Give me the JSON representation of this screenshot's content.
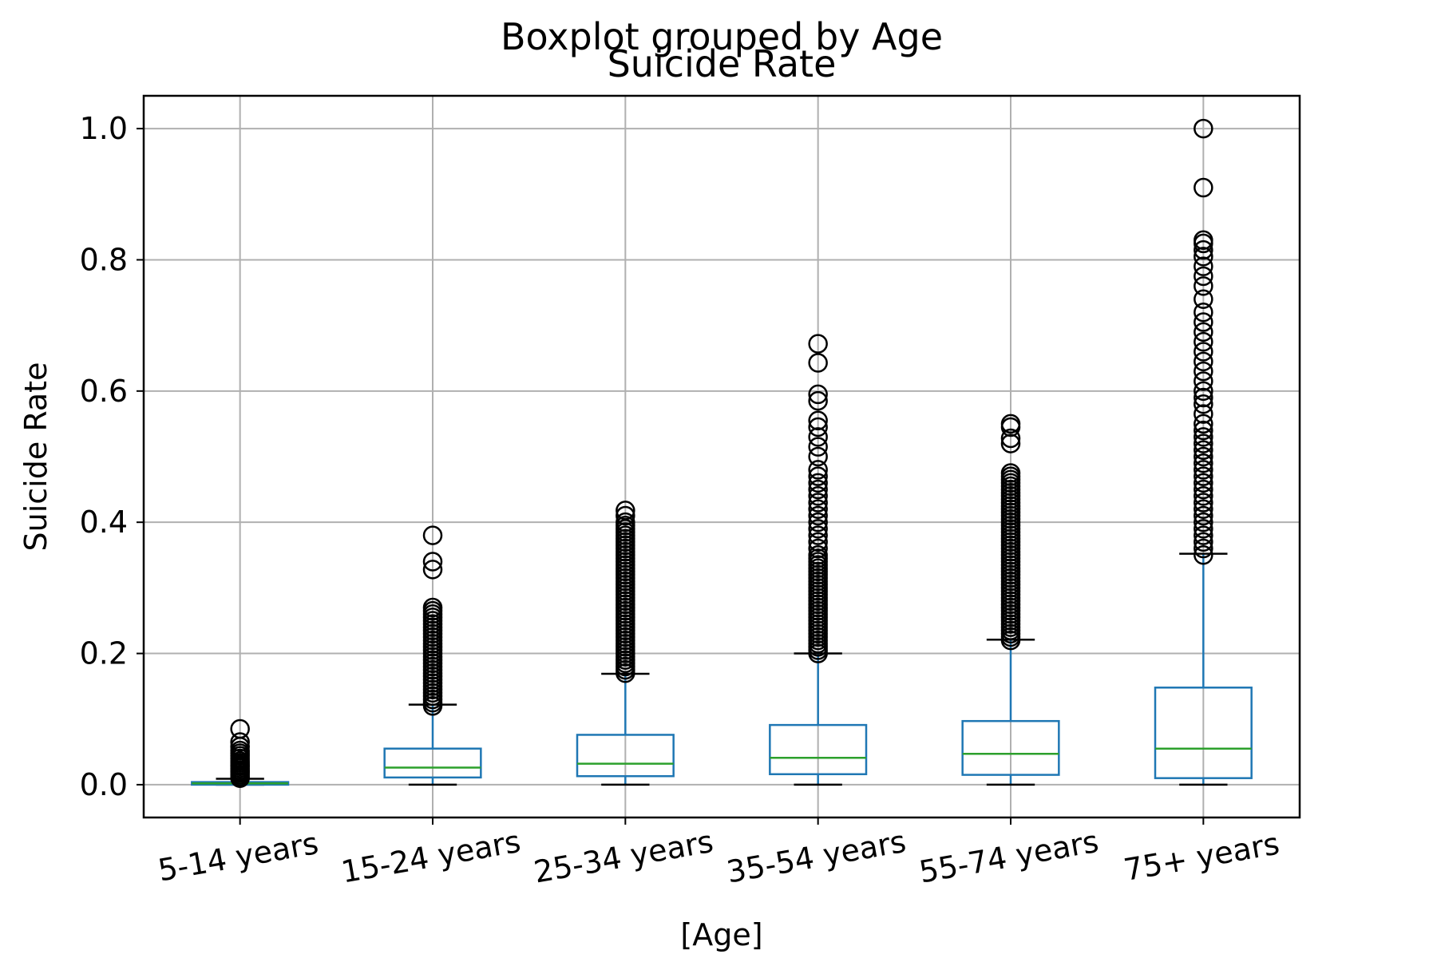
{
  "chart_data": {
    "type": "boxplot",
    "suptitle": "Boxplot grouped by Age",
    "title": "Suicide Rate",
    "xlabel": "[Age]",
    "ylabel": "Suicide Rate",
    "ylim": [
      -0.05,
      1.05
    ],
    "yticks": [
      0.0,
      0.2,
      0.4,
      0.6,
      0.8,
      1.0
    ],
    "ytick_labels": [
      "0.0",
      "0.2",
      "0.4",
      "0.6",
      "0.8",
      "1.0"
    ],
    "grid": true,
    "categories": [
      "5-14 years",
      "15-24 years",
      "25-34 years",
      "35-54 years",
      "55-74 years",
      "75+ years"
    ],
    "boxes": [
      {
        "category": "5-14 years",
        "whisker_low": 0.0,
        "q1": 0.0,
        "median": 0.002,
        "q3": 0.004,
        "whisker_high": 0.009,
        "outliers": [
          0.01,
          0.012,
          0.015,
          0.018,
          0.02,
          0.022,
          0.025,
          0.028,
          0.03,
          0.033,
          0.036,
          0.04,
          0.044,
          0.048,
          0.052,
          0.058,
          0.065,
          0.085
        ]
      },
      {
        "category": "15-24 years",
        "whisker_low": 0.0,
        "q1": 0.011,
        "median": 0.026,
        "q3": 0.055,
        "whisker_high": 0.122,
        "outliers": [
          0.12,
          0.125,
          0.13,
          0.135,
          0.14,
          0.145,
          0.15,
          0.155,
          0.16,
          0.165,
          0.17,
          0.175,
          0.18,
          0.185,
          0.19,
          0.195,
          0.2,
          0.205,
          0.21,
          0.215,
          0.22,
          0.225,
          0.23,
          0.235,
          0.24,
          0.245,
          0.25,
          0.255,
          0.26,
          0.265,
          0.27,
          0.328,
          0.34,
          0.38
        ]
      },
      {
        "category": "25-34 years",
        "whisker_low": 0.0,
        "q1": 0.013,
        "median": 0.032,
        "q3": 0.076,
        "whisker_high": 0.169,
        "outliers": [
          0.17,
          0.175,
          0.18,
          0.185,
          0.19,
          0.195,
          0.2,
          0.205,
          0.21,
          0.215,
          0.22,
          0.225,
          0.23,
          0.235,
          0.24,
          0.245,
          0.25,
          0.255,
          0.26,
          0.265,
          0.27,
          0.275,
          0.28,
          0.285,
          0.29,
          0.295,
          0.3,
          0.305,
          0.31,
          0.315,
          0.32,
          0.325,
          0.33,
          0.335,
          0.34,
          0.345,
          0.35,
          0.355,
          0.36,
          0.365,
          0.37,
          0.375,
          0.38,
          0.385,
          0.39,
          0.395,
          0.4,
          0.41,
          0.418
        ]
      },
      {
        "category": "35-54 years",
        "whisker_low": 0.0,
        "q1": 0.016,
        "median": 0.041,
        "q3": 0.091,
        "whisker_high": 0.2,
        "outliers": [
          0.2,
          0.205,
          0.21,
          0.215,
          0.22,
          0.225,
          0.23,
          0.235,
          0.24,
          0.245,
          0.25,
          0.255,
          0.26,
          0.265,
          0.27,
          0.275,
          0.28,
          0.285,
          0.29,
          0.295,
          0.3,
          0.305,
          0.31,
          0.315,
          0.32,
          0.325,
          0.33,
          0.335,
          0.34,
          0.345,
          0.35,
          0.36,
          0.37,
          0.38,
          0.39,
          0.4,
          0.41,
          0.42,
          0.43,
          0.44,
          0.45,
          0.46,
          0.47,
          0.48,
          0.5,
          0.515,
          0.53,
          0.545,
          0.555,
          0.585,
          0.595,
          0.643,
          0.672
        ]
      },
      {
        "category": "55-74 years",
        "whisker_low": 0.0,
        "q1": 0.015,
        "median": 0.047,
        "q3": 0.097,
        "whisker_high": 0.221,
        "outliers": [
          0.22,
          0.225,
          0.23,
          0.235,
          0.24,
          0.245,
          0.25,
          0.255,
          0.26,
          0.265,
          0.27,
          0.275,
          0.28,
          0.285,
          0.29,
          0.295,
          0.3,
          0.305,
          0.31,
          0.315,
          0.32,
          0.325,
          0.33,
          0.335,
          0.34,
          0.345,
          0.35,
          0.355,
          0.36,
          0.365,
          0.37,
          0.375,
          0.38,
          0.385,
          0.39,
          0.395,
          0.4,
          0.405,
          0.41,
          0.415,
          0.42,
          0.425,
          0.43,
          0.435,
          0.44,
          0.445,
          0.45,
          0.455,
          0.46,
          0.465,
          0.47,
          0.475,
          0.52,
          0.528,
          0.545,
          0.55
        ]
      },
      {
        "category": "75+ years",
        "whisker_low": 0.0,
        "q1": 0.01,
        "median": 0.055,
        "q3": 0.148,
        "whisker_high": 0.352,
        "outliers": [
          0.35,
          0.36,
          0.37,
          0.38,
          0.39,
          0.4,
          0.41,
          0.42,
          0.43,
          0.44,
          0.45,
          0.46,
          0.47,
          0.48,
          0.49,
          0.5,
          0.51,
          0.52,
          0.53,
          0.54,
          0.55,
          0.565,
          0.58,
          0.59,
          0.6,
          0.615,
          0.63,
          0.645,
          0.66,
          0.675,
          0.69,
          0.705,
          0.72,
          0.74,
          0.76,
          0.775,
          0.79,
          0.805,
          0.815,
          0.825,
          0.83,
          0.91,
          1.0
        ]
      }
    ],
    "colors": {
      "box": "#1f77b4",
      "median": "#2ca02c",
      "whisker_cap": "#000000",
      "outlier": "#000000",
      "grid": "#b0b0b0",
      "axes": "#000000"
    }
  }
}
